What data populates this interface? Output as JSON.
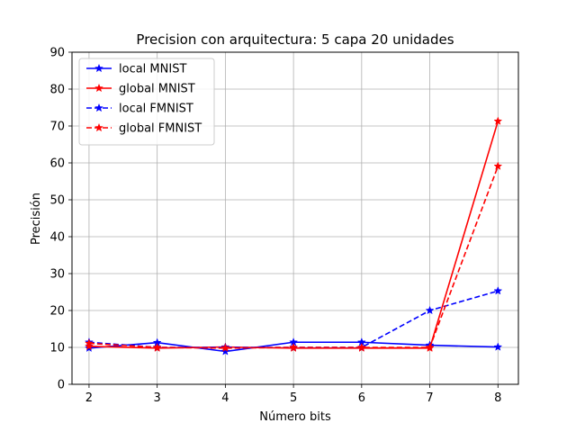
{
  "chart_data": {
    "type": "line",
    "title": "Precision con arquitectura: 5 capa 20 unidades",
    "xlabel": "Número bits",
    "ylabel": "Precisión",
    "x": [
      2,
      3,
      4,
      5,
      6,
      7,
      8
    ],
    "xlim": [
      1.75,
      8.3
    ],
    "ylim": [
      0,
      90
    ],
    "xticks": [
      2,
      3,
      4,
      5,
      6,
      7,
      8
    ],
    "yticks": [
      0,
      10,
      20,
      30,
      40,
      50,
      60,
      70,
      80,
      90
    ],
    "grid": true,
    "legend_position": "top-left",
    "series": [
      {
        "name": "local MNIST",
        "values": [
          9.8,
          11.3,
          8.9,
          11.4,
          11.4,
          10.6,
          10.1
        ],
        "color": "#0000ff",
        "dash": "solid",
        "marker": "star"
      },
      {
        "name": "global MNIST",
        "values": [
          10.3,
          9.8,
          10.1,
          9.8,
          9.8,
          9.8,
          71.3
        ],
        "color": "#ff0000",
        "dash": "solid",
        "marker": "star"
      },
      {
        "name": "local FMNIST",
        "values": [
          11.4,
          10.0,
          10.0,
          10.0,
          10.0,
          20.0,
          25.3
        ],
        "color": "#0000ff",
        "dash": "dashed",
        "marker": "star"
      },
      {
        "name": "global FMNIST",
        "values": [
          11.1,
          10.0,
          9.8,
          10.0,
          10.0,
          10.0,
          59.1
        ],
        "color": "#ff0000",
        "dash": "dashed",
        "marker": "star"
      }
    ]
  }
}
